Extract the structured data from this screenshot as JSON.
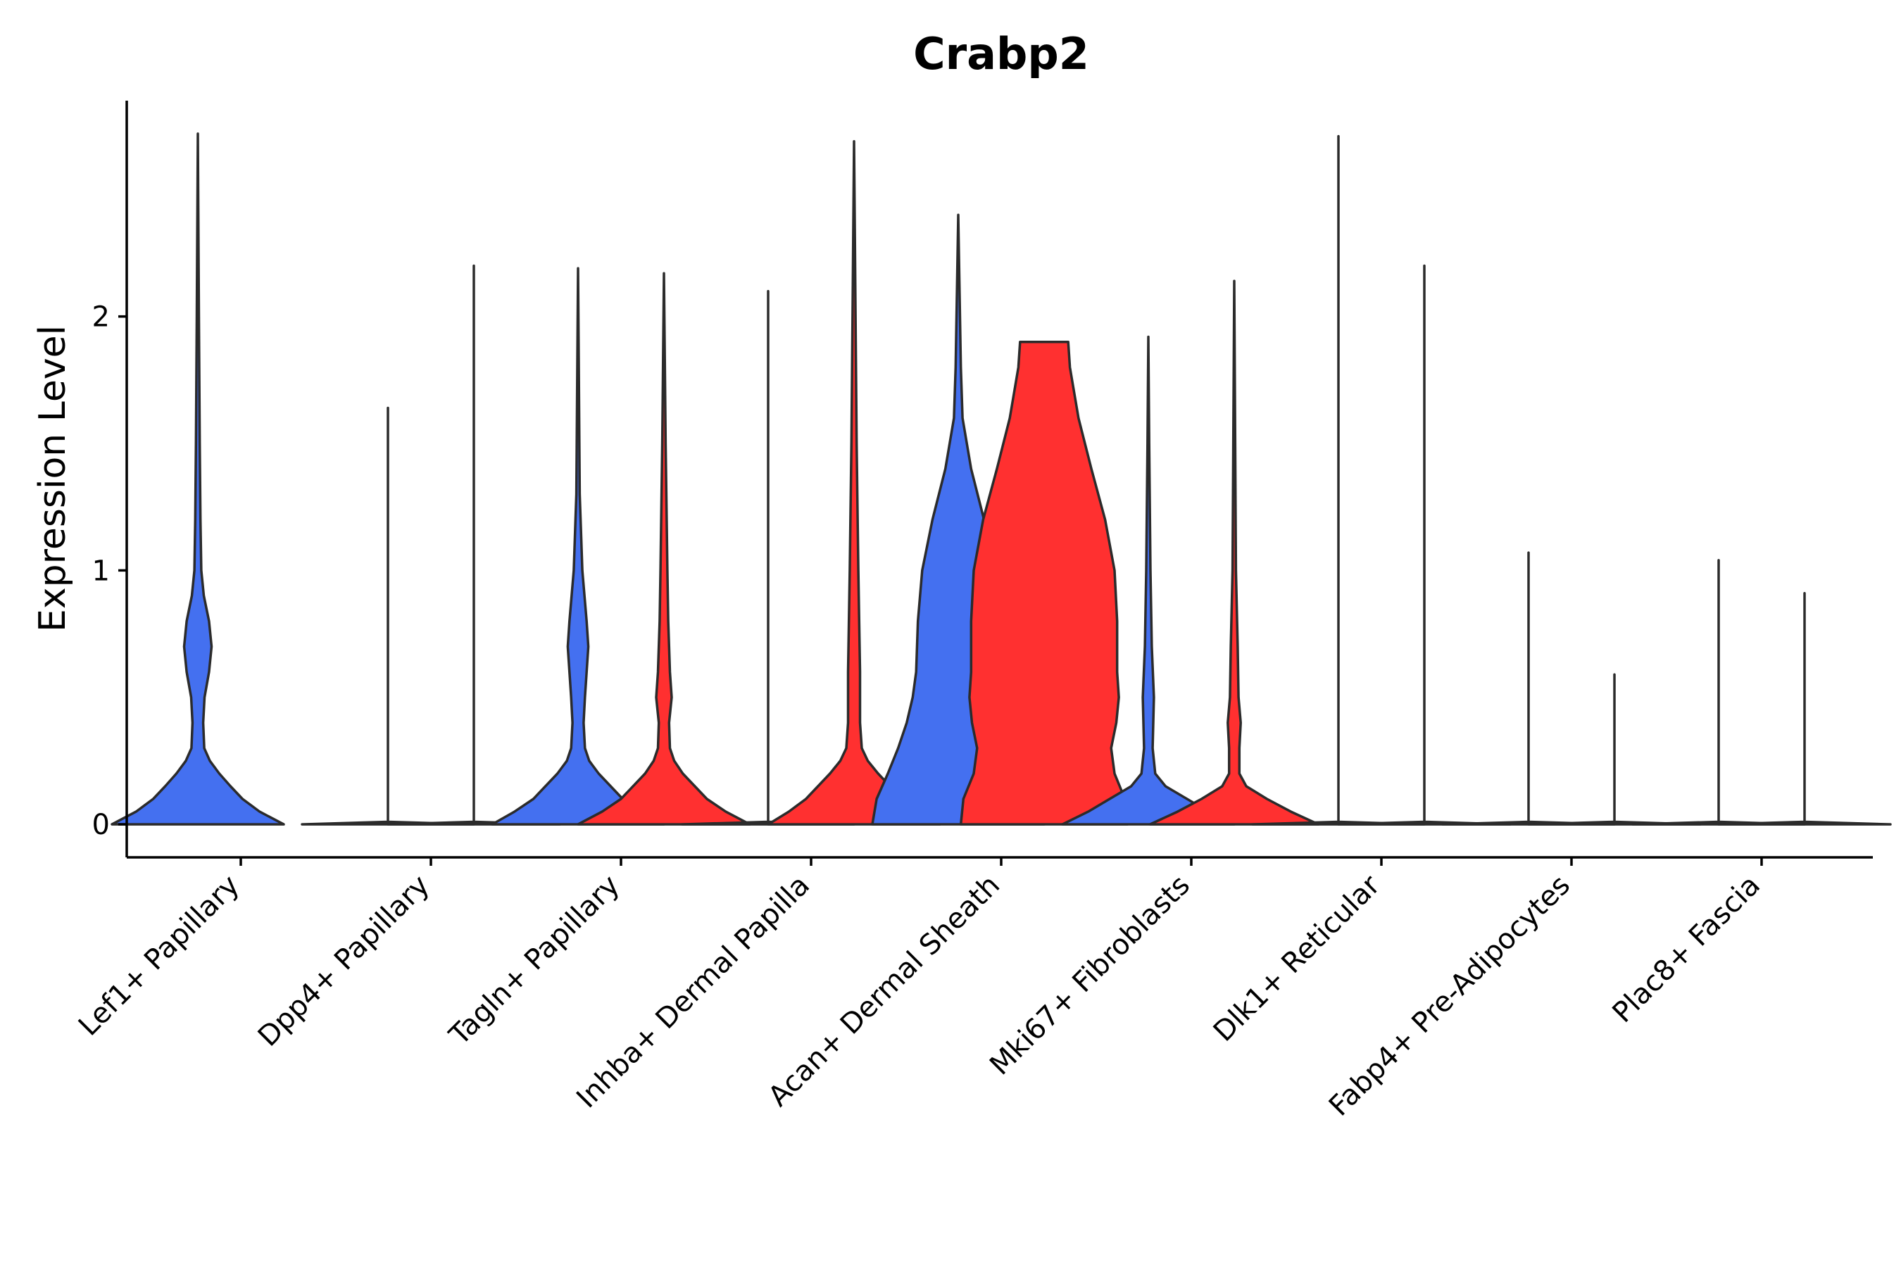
{
  "chart_data": {
    "type": "violin",
    "title": "Crabp2",
    "xlabel": "",
    "ylabel": "Expression Level",
    "ylim": [
      -0.13,
      2.85
    ],
    "yticks": [
      0,
      1,
      2
    ],
    "colors": {
      "groupA": "#4470F0",
      "groupB": "#FF3030"
    },
    "categories": [
      "Lef1+ Papillary",
      "Dpp4+ Papillary",
      "Tagln+ Papillary",
      "Inhba+ Dermal Papilla",
      "Acan+ Dermal Sheath",
      "Mki67+ Fibroblasts",
      "Dlk1+ Reticular",
      "Fabp4+ Pre-Adipocytes",
      "Plac8+ Fascia"
    ],
    "violins": [
      {
        "category": 0,
        "side": "left",
        "color": "groupA",
        "max": 2.72,
        "profile": [
          [
            0,
            1.0
          ],
          [
            0.05,
            0.72
          ],
          [
            0.1,
            0.52
          ],
          [
            0.15,
            0.38
          ],
          [
            0.2,
            0.25
          ],
          [
            0.25,
            0.14
          ],
          [
            0.3,
            0.075
          ],
          [
            0.4,
            0.062
          ],
          [
            0.5,
            0.078
          ],
          [
            0.6,
            0.13
          ],
          [
            0.7,
            0.16
          ],
          [
            0.8,
            0.13
          ],
          [
            0.9,
            0.07
          ],
          [
            1.0,
            0.04
          ],
          [
            1.2,
            0.03
          ],
          [
            1.5,
            0.022
          ],
          [
            2.0,
            0.012
          ],
          [
            2.72,
            0.0
          ]
        ]
      },
      {
        "category": 1,
        "side": "left",
        "color": "groupA",
        "max": 1.64,
        "profile": [
          [
            0,
            1.0
          ],
          [
            0.01,
            0.0
          ],
          [
            1.64,
            0.0
          ]
        ]
      },
      {
        "category": 1,
        "side": "right",
        "color": "groupB",
        "max": 2.2,
        "profile": [
          [
            0,
            1.0
          ],
          [
            0.01,
            0.0
          ],
          [
            2.2,
            0.0
          ]
        ]
      },
      {
        "category": 2,
        "side": "left",
        "color": "groupA",
        "max": 2.19,
        "profile": [
          [
            0,
            1.0
          ],
          [
            0.05,
            0.74
          ],
          [
            0.1,
            0.52
          ],
          [
            0.2,
            0.24
          ],
          [
            0.25,
            0.13
          ],
          [
            0.3,
            0.08
          ],
          [
            0.4,
            0.065
          ],
          [
            0.5,
            0.08
          ],
          [
            0.6,
            0.1
          ],
          [
            0.7,
            0.12
          ],
          [
            0.8,
            0.1
          ],
          [
            1.0,
            0.05
          ],
          [
            1.3,
            0.02
          ],
          [
            2.19,
            0.0
          ]
        ]
      },
      {
        "category": 2,
        "side": "right",
        "color": "groupB",
        "max": 2.17,
        "profile": [
          [
            0,
            1.0
          ],
          [
            0.05,
            0.72
          ],
          [
            0.1,
            0.5
          ],
          [
            0.2,
            0.22
          ],
          [
            0.25,
            0.12
          ],
          [
            0.3,
            0.07
          ],
          [
            0.4,
            0.06
          ],
          [
            0.5,
            0.09
          ],
          [
            0.6,
            0.07
          ],
          [
            0.8,
            0.05
          ],
          [
            1.0,
            0.04
          ],
          [
            1.5,
            0.02
          ],
          [
            2.17,
            0.0
          ]
        ]
      },
      {
        "category": 3,
        "side": "left",
        "color": "groupA",
        "max": 2.1,
        "profile": [
          [
            0,
            1.0
          ],
          [
            0.01,
            0.0
          ],
          [
            2.1,
            0.0
          ]
        ]
      },
      {
        "category": 3,
        "side": "right",
        "color": "groupB",
        "max": 2.69,
        "profile": [
          [
            0,
            1.0
          ],
          [
            0.05,
            0.76
          ],
          [
            0.1,
            0.56
          ],
          [
            0.2,
            0.28
          ],
          [
            0.25,
            0.16
          ],
          [
            0.3,
            0.09
          ],
          [
            0.4,
            0.07
          ],
          [
            0.6,
            0.07
          ],
          [
            1.0,
            0.05
          ],
          [
            1.5,
            0.03
          ],
          [
            2.69,
            0.0
          ]
        ]
      },
      {
        "category": 4,
        "side": "left",
        "color": "groupA",
        "max": 2.4,
        "profile": [
          [
            0,
            1.0
          ],
          [
            0.1,
            0.95
          ],
          [
            0.2,
            0.82
          ],
          [
            0.3,
            0.7
          ],
          [
            0.4,
            0.6
          ],
          [
            0.5,
            0.53
          ],
          [
            0.6,
            0.49
          ],
          [
            0.8,
            0.47
          ],
          [
            1.0,
            0.42
          ],
          [
            1.2,
            0.3
          ],
          [
            1.4,
            0.15
          ],
          [
            1.6,
            0.05
          ],
          [
            1.8,
            0.03
          ],
          [
            2.4,
            0.0
          ]
        ]
      },
      {
        "category": 4,
        "side": "right",
        "color": "groupB",
        "max": 1.9,
        "profile": [
          [
            0,
            0.97
          ],
          [
            0.1,
            0.94
          ],
          [
            0.2,
            0.82
          ],
          [
            0.3,
            0.78
          ],
          [
            0.4,
            0.84
          ],
          [
            0.5,
            0.87
          ],
          [
            0.6,
            0.85
          ],
          [
            0.8,
            0.85
          ],
          [
            1.0,
            0.82
          ],
          [
            1.2,
            0.71
          ],
          [
            1.4,
            0.55
          ],
          [
            1.6,
            0.4
          ],
          [
            1.8,
            0.3
          ],
          [
            1.9,
            0.28
          ]
        ]
      },
      {
        "category": 5,
        "side": "left",
        "color": "groupA",
        "max": 1.92,
        "profile": [
          [
            0,
            1.0
          ],
          [
            0.05,
            0.7
          ],
          [
            0.1,
            0.45
          ],
          [
            0.15,
            0.2
          ],
          [
            0.2,
            0.08
          ],
          [
            0.3,
            0.05
          ],
          [
            0.5,
            0.065
          ],
          [
            0.7,
            0.04
          ],
          [
            1.0,
            0.025
          ],
          [
            1.5,
            0.01
          ],
          [
            1.92,
            0.0
          ]
        ]
      },
      {
        "category": 5,
        "side": "right",
        "color": "groupB",
        "max": 2.14,
        "profile": [
          [
            0,
            0.98
          ],
          [
            0.05,
            0.66
          ],
          [
            0.1,
            0.38
          ],
          [
            0.15,
            0.14
          ],
          [
            0.2,
            0.06
          ],
          [
            0.3,
            0.06
          ],
          [
            0.4,
            0.075
          ],
          [
            0.5,
            0.05
          ],
          [
            0.7,
            0.04
          ],
          [
            1.0,
            0.02
          ],
          [
            2.14,
            0.0
          ]
        ]
      },
      {
        "category": 6,
        "side": "left",
        "color": "groupA",
        "max": 2.71,
        "profile": [
          [
            0,
            1.0
          ],
          [
            0.01,
            0.0
          ],
          [
            2.71,
            0.0
          ]
        ]
      },
      {
        "category": 6,
        "side": "right",
        "color": "groupB",
        "max": 2.2,
        "profile": [
          [
            0,
            1.0
          ],
          [
            0.01,
            0.0
          ],
          [
            2.2,
            0.0
          ]
        ]
      },
      {
        "category": 7,
        "side": "left",
        "color": "groupA",
        "max": 1.07,
        "profile": [
          [
            0,
            1.0
          ],
          [
            0.01,
            0.0
          ],
          [
            1.07,
            0.0
          ]
        ]
      },
      {
        "category": 7,
        "side": "right",
        "color": "groupB",
        "max": 0.59,
        "profile": [
          [
            0,
            1.0
          ],
          [
            0.01,
            0.0
          ],
          [
            0.59,
            0.0
          ]
        ]
      },
      {
        "category": 8,
        "side": "left",
        "color": "groupA",
        "max": 1.04,
        "profile": [
          [
            0,
            1.0
          ],
          [
            0.01,
            0.0
          ],
          [
            1.04,
            0.0
          ]
        ]
      },
      {
        "category": 8,
        "side": "right",
        "color": "groupB",
        "max": 0.91,
        "profile": [
          [
            0,
            1.0
          ],
          [
            0.01,
            0.0
          ],
          [
            0.91,
            0.0
          ]
        ]
      }
    ]
  }
}
